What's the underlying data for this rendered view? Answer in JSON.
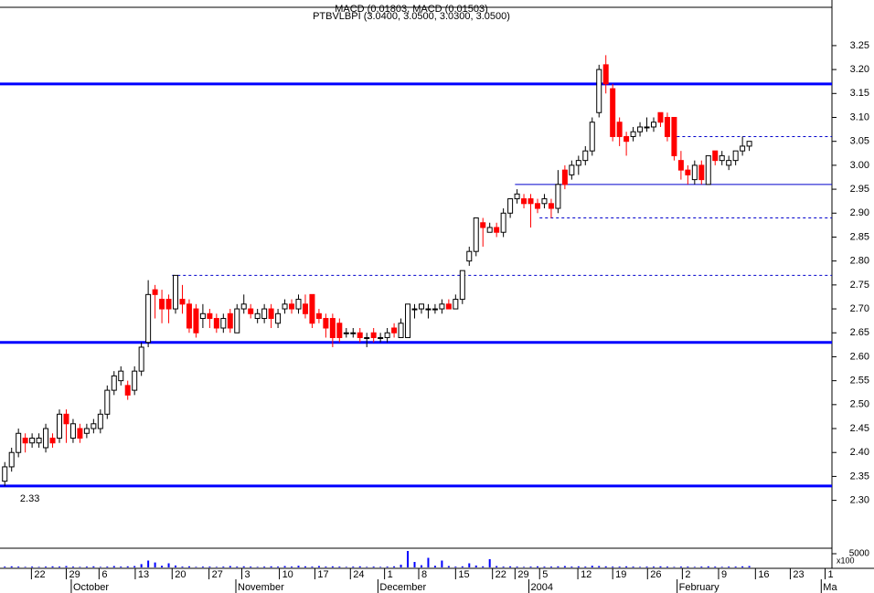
{
  "chart_data": {
    "type": "candlestick",
    "title": "PTBVLBPI (3.0400, 3.0500, 3.0300, 3.0500)",
    "subtitle": "MACD (0.01803, MACD (0.01503)",
    "annotation": {
      "text": "2.33",
      "x": 3,
      "y": 2.33
    },
    "open": [
      2.34,
      2.37,
      2.4,
      2.43,
      2.42,
      2.42,
      2.41,
      2.43,
      2.43,
      2.48,
      2.43,
      2.45,
      2.44,
      2.45,
      2.45,
      2.48,
      2.53,
      2.55,
      2.54,
      2.53,
      2.57,
      2.63,
      2.74,
      2.72,
      2.72,
      2.7,
      2.72,
      2.71,
      2.7,
      2.68,
      2.69,
      2.68,
      2.66,
      2.69,
      2.65,
      2.7,
      2.7,
      2.68,
      2.68,
      2.7,
      2.67,
      2.7,
      2.71,
      2.7,
      2.71,
      2.73,
      2.69,
      2.68,
      2.68,
      2.67,
      2.65,
      2.65,
      2.65,
      2.64,
      2.65,
      2.64,
      2.64,
      2.66,
      2.64,
      2.64,
      2.7,
      2.7,
      2.7,
      2.7,
      2.7,
      2.71,
      2.7,
      2.72,
      2.8,
      2.82,
      2.88,
      2.86,
      2.87,
      2.86,
      2.9,
      2.93,
      2.93,
      2.93,
      2.92,
      2.92,
      2.92,
      2.91,
      2.99,
      2.98,
      3.0,
      3.01,
      3.03,
      3.11,
      3.21,
      3.16,
      3.09,
      3.06,
      3.06,
      3.07,
      3.08,
      3.08,
      3.11,
      3.1,
      3.1,
      3.01,
      2.99,
      2.97,
      3.0,
      2.96,
      3.03,
      3.01,
      3.0,
      3.01,
      3.03,
      3.04
    ],
    "high": [
      2.38,
      2.41,
      2.45,
      2.44,
      2.44,
      2.44,
      2.46,
      2.44,
      2.49,
      2.49,
      2.47,
      2.46,
      2.46,
      2.47,
      2.49,
      2.54,
      2.57,
      2.58,
      2.55,
      2.58,
      2.63,
      2.76,
      2.75,
      2.74,
      2.73,
      2.77,
      2.75,
      2.72,
      2.71,
      2.71,
      2.7,
      2.69,
      2.69,
      2.7,
      2.71,
      2.73,
      2.71,
      2.7,
      2.71,
      2.71,
      2.7,
      2.72,
      2.72,
      2.73,
      2.73,
      2.73,
      2.7,
      2.69,
      2.69,
      2.68,
      2.66,
      2.66,
      2.66,
      2.65,
      2.66,
      2.65,
      2.66,
      2.67,
      2.68,
      2.71,
      2.71,
      2.71,
      2.71,
      2.71,
      2.72,
      2.72,
      2.73,
      2.78,
      2.83,
      2.89,
      2.89,
      2.88,
      2.88,
      2.91,
      2.93,
      2.95,
      2.94,
      2.94,
      2.93,
      2.94,
      2.93,
      2.99,
      3.0,
      3.01,
      3.02,
      3.04,
      3.1,
      3.21,
      3.23,
      3.17,
      3.1,
      3.07,
      3.08,
      3.09,
      3.1,
      3.1,
      3.11,
      3.11,
      3.1,
      3.03,
      3.0,
      3.01,
      3.01,
      3.02,
      3.03,
      3.03,
      3.02,
      3.03,
      3.06,
      3.05
    ],
    "low": [
      2.33,
      2.36,
      2.39,
      2.4,
      2.41,
      2.41,
      2.4,
      2.41,
      2.42,
      2.42,
      2.42,
      2.42,
      2.43,
      2.44,
      2.44,
      2.47,
      2.52,
      2.54,
      2.51,
      2.52,
      2.56,
      2.62,
      2.68,
      2.67,
      2.67,
      2.69,
      2.69,
      2.65,
      2.64,
      2.66,
      2.66,
      2.65,
      2.65,
      2.65,
      2.65,
      2.69,
      2.68,
      2.67,
      2.67,
      2.66,
      2.66,
      2.69,
      2.69,
      2.69,
      2.68,
      2.66,
      2.67,
      2.64,
      2.62,
      2.63,
      2.64,
      2.64,
      2.63,
      2.62,
      2.63,
      2.63,
      2.63,
      2.64,
      2.64,
      2.64,
      2.68,
      2.69,
      2.68,
      2.69,
      2.69,
      2.7,
      2.7,
      2.71,
      2.79,
      2.81,
      2.83,
      2.86,
      2.85,
      2.85,
      2.89,
      2.92,
      2.91,
      2.87,
      2.9,
      2.91,
      2.89,
      2.9,
      2.95,
      2.97,
      2.98,
      3.0,
      3.02,
      3.1,
      3.15,
      3.05,
      3.04,
      3.02,
      3.05,
      3.06,
      3.07,
      3.07,
      3.08,
      3.05,
      3.01,
      2.97,
      2.96,
      2.96,
      2.96,
      2.96,
      3.0,
      3.0,
      2.99,
      3.0,
      3.02,
      3.03
    ],
    "close": [
      2.37,
      2.4,
      2.44,
      2.42,
      2.43,
      2.43,
      2.45,
      2.42,
      2.48,
      2.46,
      2.46,
      2.43,
      2.45,
      2.46,
      2.48,
      2.53,
      2.56,
      2.57,
      2.52,
      2.57,
      2.62,
      2.73,
      2.73,
      2.7,
      2.7,
      2.77,
      2.71,
      2.66,
      2.65,
      2.69,
      2.68,
      2.66,
      2.68,
      2.66,
      2.7,
      2.71,
      2.69,
      2.69,
      2.7,
      2.68,
      2.69,
      2.71,
      2.7,
      2.72,
      2.69,
      2.67,
      2.68,
      2.66,
      2.64,
      2.64,
      2.65,
      2.65,
      2.64,
      2.64,
      2.64,
      2.64,
      2.65,
      2.65,
      2.67,
      2.71,
      2.7,
      2.71,
      2.7,
      2.7,
      2.71,
      2.7,
      2.72,
      2.78,
      2.82,
      2.89,
      2.87,
      2.87,
      2.86,
      2.9,
      2.93,
      2.94,
      2.92,
      2.92,
      2.91,
      2.93,
      2.91,
      2.96,
      2.96,
      3.0,
      3.01,
      3.03,
      3.09,
      3.2,
      3.17,
      3.06,
      3.06,
      3.05,
      3.07,
      3.08,
      3.08,
      3.09,
      3.09,
      3.06,
      3.02,
      2.99,
      2.98,
      3.0,
      2.97,
      3.02,
      3.01,
      3.02,
      3.01,
      3.03,
      3.04,
      3.05
    ],
    "volume": [
      300,
      400,
      300,
      200,
      300,
      200,
      300,
      400,
      300,
      500,
      300,
      200,
      300,
      400,
      200,
      300,
      500,
      300,
      400,
      500,
      1200,
      2500,
      1800,
      600,
      1500,
      700,
      300,
      400,
      200,
      300,
      300,
      200,
      300,
      500,
      300,
      400,
      300,
      200,
      300,
      400,
      300,
      500,
      300,
      600,
      400,
      300,
      500,
      300,
      400,
      300,
      200,
      300,
      400,
      200,
      300,
      200,
      300,
      400,
      1000,
      6000,
      2000,
      800,
      3500,
      600,
      2500,
      500,
      300,
      400,
      1500,
      700,
      400,
      3000,
      500,
      300,
      400,
      300,
      200,
      300,
      400,
      300,
      300,
      400,
      500,
      300,
      400,
      300,
      600,
      500,
      400,
      300,
      300,
      400,
      300,
      200,
      300,
      300,
      400,
      300,
      200,
      300,
      300,
      200,
      300,
      400,
      300,
      200,
      300,
      300,
      400,
      500
    ],
    "up_color": "#ffffff",
    "down_color": "#ff0000",
    "volume_color": "#0000ff",
    "xlim": [
      -0.7,
      121.1
    ],
    "xticks": [
      {
        "value": 3.9,
        "label": "22"
      },
      {
        "value": 9,
        "label": "29"
      },
      {
        "value": 13.8,
        "label": "6"
      },
      {
        "value": 19.1,
        "label": "13"
      },
      {
        "value": 24.5,
        "label": "20"
      },
      {
        "value": 29.9,
        "label": "27"
      },
      {
        "value": 34.7,
        "label": "3"
      },
      {
        "value": 40.2,
        "label": "10"
      },
      {
        "value": 45.4,
        "label": "17"
      },
      {
        "value": 50.6,
        "label": "24"
      },
      {
        "value": 55.6,
        "label": "1"
      },
      {
        "value": 60.6,
        "label": "8"
      },
      {
        "value": 66,
        "label": "15"
      },
      {
        "value": 71.4,
        "label": "22"
      },
      {
        "value": 74.7,
        "label": "29"
      },
      {
        "value": 78.3,
        "label": "5"
      },
      {
        "value": 83.9,
        "label": "12"
      },
      {
        "value": 89,
        "label": "19"
      },
      {
        "value": 94.1,
        "label": "26"
      },
      {
        "value": 99.2,
        "label": "2"
      },
      {
        "value": 104.5,
        "label": "9"
      },
      {
        "value": 109.9,
        "label": "16"
      },
      {
        "value": 115,
        "label": "23"
      },
      {
        "value": 120.1,
        "label": "1"
      }
    ],
    "month_labels": [
      {
        "value": 10,
        "label": "October"
      },
      {
        "value": 34.1,
        "label": "November"
      },
      {
        "value": 54.9,
        "label": "December"
      },
      {
        "value": 77,
        "label": "2004"
      },
      {
        "value": 98.7,
        "label": "February"
      },
      {
        "value": 119.8,
        "label": "Ma"
      }
    ],
    "ylim": [
      2.2,
      3.33
    ],
    "yticks": [
      {
        "value": 2.3,
        "label": "2.30"
      },
      {
        "value": 2.35,
        "label": "2.35"
      },
      {
        "value": 2.4,
        "label": "2.40"
      },
      {
        "value": 2.45,
        "label": "2.45"
      },
      {
        "value": 2.5,
        "label": "2.50"
      },
      {
        "value": 2.55,
        "label": "2.55"
      },
      {
        "value": 2.6,
        "label": "2.60"
      },
      {
        "value": 2.65,
        "label": "2.65"
      },
      {
        "value": 2.7,
        "label": "2.70"
      },
      {
        "value": 2.75,
        "label": "2.75"
      },
      {
        "value": 2.8,
        "label": "2.80"
      },
      {
        "value": 2.85,
        "label": "2.85"
      },
      {
        "value": 2.9,
        "label": "2.90"
      },
      {
        "value": 2.95,
        "label": "2.95"
      },
      {
        "value": 3,
        "label": "3.00"
      },
      {
        "value": 3.05,
        "label": "3.05"
      },
      {
        "value": 3.1,
        "label": "3.10"
      },
      {
        "value": 3.15,
        "label": "3.15"
      },
      {
        "value": 3.2,
        "label": "3.20"
      },
      {
        "value": 3.25,
        "label": "3.25"
      }
    ],
    "volume_ylim": [
      0,
      6000
    ],
    "volume_yticks": [
      5000
    ],
    "volume_unit": "x100",
    "hlines": [
      {
        "value": 3.17,
        "from": -0.7,
        "style": "thick"
      },
      {
        "value": 2.63,
        "from": -0.7,
        "style": "thick"
      },
      {
        "value": 2.33,
        "from": -0.7,
        "style": "thick"
      },
      {
        "value": 2.96,
        "from": 74.7,
        "style": "thin"
      },
      {
        "value": 3.06,
        "from": 98.4,
        "style": "dashed"
      },
      {
        "value": 2.89,
        "from": 78.3,
        "style": "dashed"
      },
      {
        "value": 2.77,
        "from": 24.5,
        "style": "dashed"
      }
    ]
  }
}
